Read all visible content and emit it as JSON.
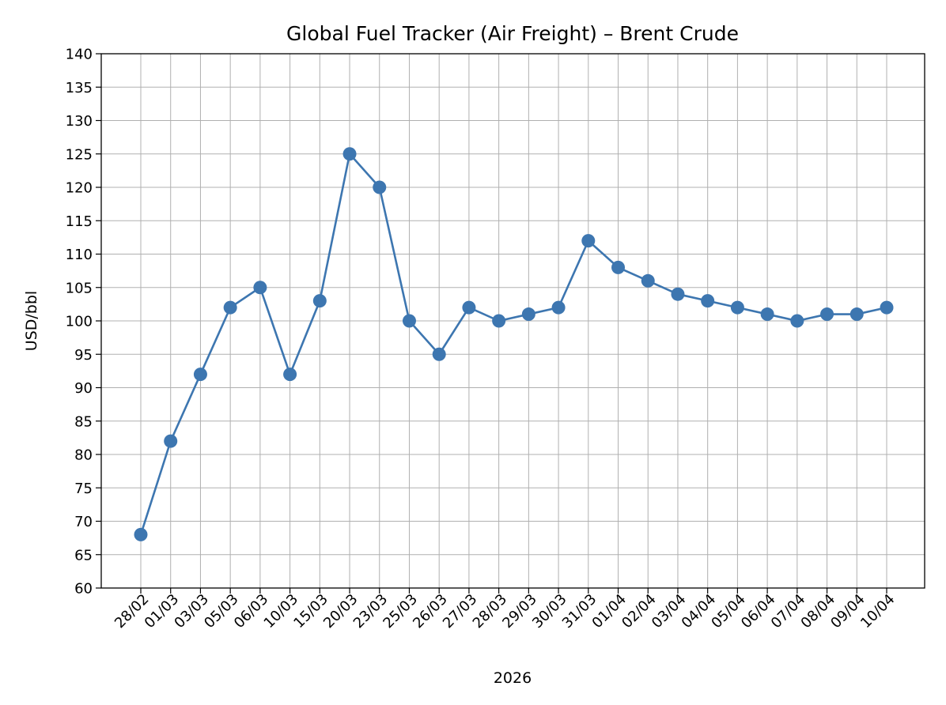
{
  "chart_data": {
    "type": "line",
    "title": "Global Fuel Tracker (Air Freight) – Brent Crude",
    "xlabel": "2026",
    "ylabel": "USD/bbl",
    "categories": [
      "28/02",
      "01/03",
      "03/03",
      "05/03",
      "06/03",
      "10/03",
      "15/03",
      "20/03",
      "23/03",
      "25/03",
      "26/03",
      "27/03",
      "28/03",
      "29/03",
      "30/03",
      "31/03",
      "01/04",
      "02/04",
      "03/04",
      "04/04",
      "05/04",
      "06/04",
      "07/04",
      "08/04",
      "09/04",
      "10/04"
    ],
    "series": [
      {
        "values": [
          68,
          82,
          92,
          102,
          105,
          92,
          103,
          125,
          120,
          100,
          95,
          102,
          100,
          101,
          102,
          112,
          108,
          106,
          104,
          103,
          102,
          101,
          100,
          101,
          101,
          102
        ],
        "color": "#3d76b0",
        "marker": "circle"
      }
    ],
    "ylim": [
      60,
      140
    ],
    "yticks": [
      60,
      65,
      70,
      75,
      80,
      85,
      90,
      95,
      100,
      105,
      110,
      115,
      120,
      125,
      130,
      135,
      140
    ],
    "grid": true,
    "xtick_rotation": -45
  }
}
